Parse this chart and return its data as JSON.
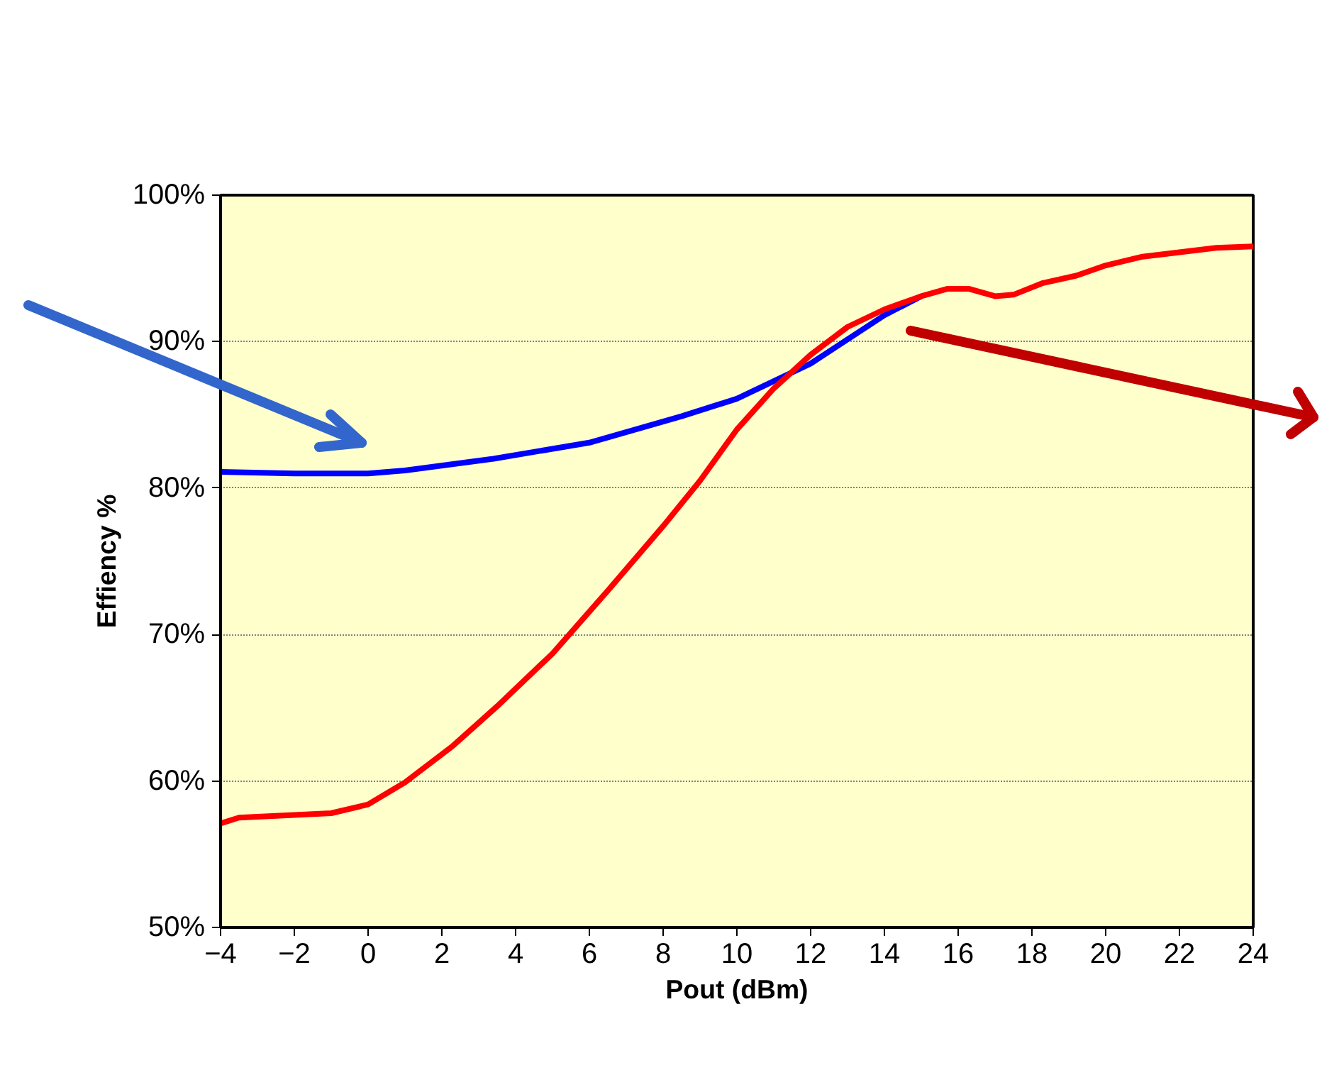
{
  "chart_data": {
    "type": "line",
    "xlabel": "Pout (dBm)",
    "ylabel": "Effiency %",
    "xlim": [
      -4,
      24
    ],
    "xticks": [
      -4,
      -2,
      0,
      2,
      4,
      6,
      8,
      10,
      12,
      14,
      16,
      18,
      20,
      22,
      24
    ],
    "ylim": [
      50,
      100
    ],
    "yticks": [
      {
        "value": 50,
        "label": "50%"
      },
      {
        "value": 60,
        "label": "60%"
      },
      {
        "value": 70,
        "label": "70%"
      },
      {
        "value": 80,
        "label": "80%"
      },
      {
        "value": 90,
        "label": "90%"
      },
      {
        "value": 100,
        "label": "100%"
      }
    ],
    "grid": "y",
    "series": [
      {
        "color": "#0000ff",
        "x": [
          -4,
          -2,
          0,
          1,
          3.4,
          6,
          8.5,
          10,
          12,
          14,
          15
        ],
        "values": [
          81.1,
          81.0,
          81.0,
          81.2,
          82.0,
          83.1,
          84.9,
          86.1,
          88.5,
          91.8,
          93.1
        ]
      },
      {
        "color": "#ff0000",
        "x": [
          -4,
          -3.5,
          -1,
          0,
          1,
          2.3,
          3.5,
          5,
          6.5,
          8,
          9,
          10,
          11,
          12,
          13,
          14,
          15,
          15.7,
          16.3,
          17,
          17.5,
          18.3,
          19.2,
          20,
          21,
          22,
          23,
          24
        ],
        "values": [
          57.1,
          57.5,
          57.8,
          58.4,
          59.9,
          62.4,
          65.1,
          68.7,
          73.0,
          77.4,
          80.5,
          84.0,
          86.8,
          89.1,
          91.0,
          92.2,
          93.1,
          93.6,
          93.6,
          93.1,
          93.2,
          94.0,
          94.5,
          95.2,
          95.8,
          96.1,
          96.4,
          96.5
        ]
      }
    ]
  }
}
